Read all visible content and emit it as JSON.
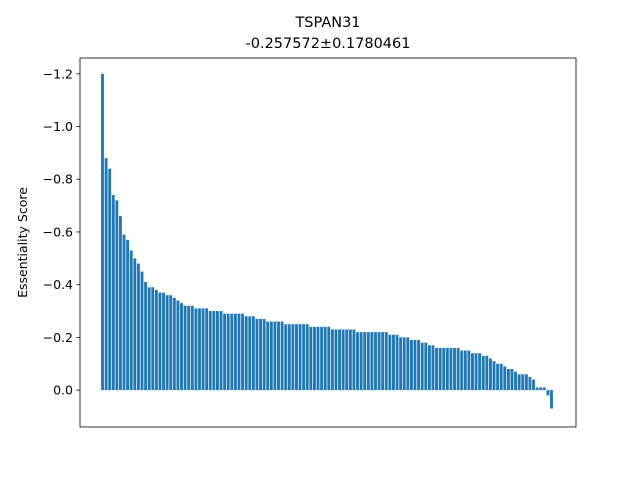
{
  "chart_data": {
    "type": "bar",
    "title": "TSPAN31",
    "subtitle": "-0.257572±0.1780461",
    "xlabel": "",
    "ylabel": "Essentiality Score",
    "ylim": [
      0.14,
      -1.26
    ],
    "y_inverted": true,
    "x_ticks_visible": false,
    "grid": false,
    "yticks": [
      {
        "value": -1.2,
        "label": "−1.2"
      },
      {
        "value": -1.0,
        "label": "−1.0"
      },
      {
        "value": -0.8,
        "label": "−0.8"
      },
      {
        "value": -0.6,
        "label": "−0.6"
      },
      {
        "value": -0.4,
        "label": "−0.4"
      },
      {
        "value": -0.2,
        "label": "−0.2"
      },
      {
        "value": 0.0,
        "label": "0.0"
      }
    ],
    "values": [
      -1.2,
      -0.88,
      -0.84,
      -0.74,
      -0.72,
      -0.66,
      -0.59,
      -0.57,
      -0.53,
      -0.5,
      -0.48,
      -0.45,
      -0.41,
      -0.39,
      -0.39,
      -0.38,
      -0.37,
      -0.37,
      -0.36,
      -0.36,
      -0.35,
      -0.34,
      -0.33,
      -0.32,
      -0.32,
      -0.32,
      -0.31,
      -0.31,
      -0.31,
      -0.31,
      -0.3,
      -0.3,
      -0.3,
      -0.3,
      -0.29,
      -0.29,
      -0.29,
      -0.29,
      -0.29,
      -0.29,
      -0.28,
      -0.28,
      -0.28,
      -0.27,
      -0.27,
      -0.27,
      -0.26,
      -0.26,
      -0.26,
      -0.26,
      -0.26,
      -0.25,
      -0.25,
      -0.25,
      -0.25,
      -0.25,
      -0.25,
      -0.25,
      -0.24,
      -0.24,
      -0.24,
      -0.24,
      -0.24,
      -0.24,
      -0.23,
      -0.23,
      -0.23,
      -0.23,
      -0.23,
      -0.23,
      -0.23,
      -0.22,
      -0.22,
      -0.22,
      -0.22,
      -0.22,
      -0.22,
      -0.22,
      -0.22,
      -0.22,
      -0.21,
      -0.21,
      -0.21,
      -0.2,
      -0.2,
      -0.2,
      -0.19,
      -0.19,
      -0.19,
      -0.18,
      -0.18,
      -0.17,
      -0.17,
      -0.16,
      -0.16,
      -0.16,
      -0.16,
      -0.16,
      -0.16,
      -0.16,
      -0.15,
      -0.15,
      -0.15,
      -0.14,
      -0.14,
      -0.14,
      -0.13,
      -0.13,
      -0.12,
      -0.11,
      -0.1,
      -0.1,
      -0.09,
      -0.08,
      -0.08,
      -0.07,
      -0.06,
      -0.06,
      -0.06,
      -0.05,
      -0.04,
      -0.01,
      -0.01,
      -0.01,
      0.02,
      0.07
    ]
  }
}
